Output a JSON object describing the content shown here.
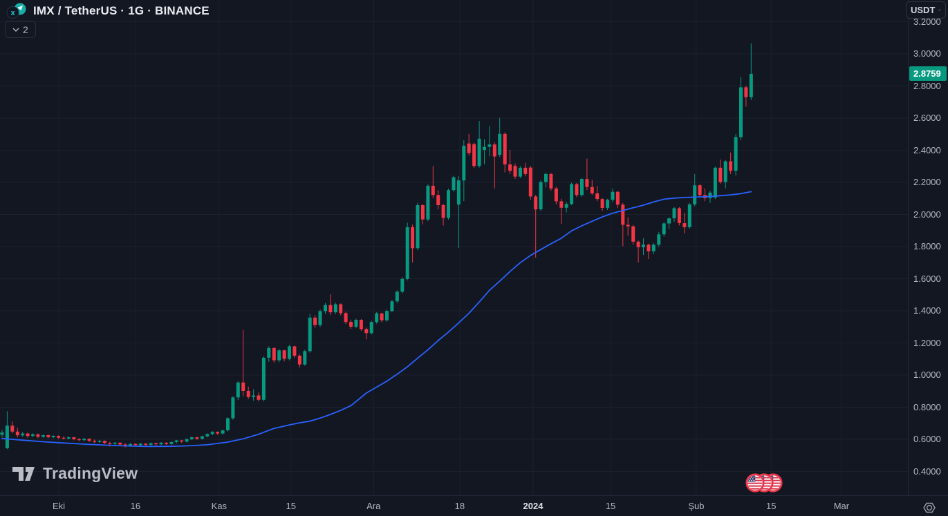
{
  "header": {
    "symbol_title": "IMX / TetherUS · 1G · BINANCE",
    "symbol": "IMX",
    "quote": "TetherUS",
    "interval": "1G",
    "exchange": "BINANCE",
    "indicators_collapsed_count": "2",
    "currency_button_label": "USDT"
  },
  "watermark": {
    "label": "TradingView"
  },
  "event_markers": {
    "type": "us-flag-economic-events",
    "count": 3
  },
  "chart_data": {
    "type": "candlestick",
    "title": "IMX / TetherUS",
    "interval": "1G",
    "exchange": "BINANCE",
    "quote_currency": "USDT",
    "last_price": 2.8759,
    "last_price_display": "2.8759",
    "overlay": "moving-average-line",
    "colors": {
      "up": "#089981",
      "down": "#F23645",
      "ma_line": "#2962FF",
      "badge_bg": "#089981",
      "grid": "#1c212e",
      "axis_text": "#b4b8c1",
      "background": "#131722"
    },
    "y_axis": {
      "side": "right",
      "min": 0.35,
      "max": 3.25,
      "gridline_step": 0.2,
      "price_lines": [
        3.2,
        3.0,
        2.8,
        2.6,
        2.4,
        2.2,
        2.0,
        1.8,
        1.6,
        1.4,
        1.2,
        1.0,
        0.8,
        0.6,
        0.4
      ]
    },
    "x_ticks": [
      {
        "label": "Eki",
        "i": 11.05,
        "strong": false
      },
      {
        "label": "16",
        "i": 26.0,
        "strong": false
      },
      {
        "label": "Kas",
        "i": 42.3,
        "strong": false
      },
      {
        "label": "15",
        "i": 56.3,
        "strong": false
      },
      {
        "label": "Ara",
        "i": 72.4,
        "strong": false
      },
      {
        "label": "18",
        "i": 89.2,
        "strong": false
      },
      {
        "label": "2024",
        "i": 103.5,
        "strong": true
      },
      {
        "label": "15",
        "i": 118.6,
        "strong": false
      },
      {
        "label": "Şub",
        "i": 135.3,
        "strong": false
      },
      {
        "label": "15",
        "i": 149.9,
        "strong": false
      },
      {
        "label": "Mar",
        "i": 163.6,
        "strong": false
      }
    ],
    "candles": [
      [
        0.628,
        0.658,
        0.612,
        0.642
      ],
      [
        0.545,
        0.775,
        0.538,
        0.685
      ],
      [
        0.685,
        0.712,
        0.638,
        0.648
      ],
      [
        0.648,
        0.672,
        0.612,
        0.625
      ],
      [
        0.625,
        0.645,
        0.616,
        0.636
      ],
      [
        0.636,
        0.642,
        0.61,
        0.621
      ],
      [
        0.621,
        0.638,
        0.613,
        0.631
      ],
      [
        0.631,
        0.636,
        0.608,
        0.616
      ],
      [
        0.616,
        0.63,
        0.609,
        0.626
      ],
      [
        0.626,
        0.63,
        0.606,
        0.613
      ],
      [
        0.613,
        0.625,
        0.607,
        0.621
      ],
      [
        0.621,
        0.624,
        0.602,
        0.61
      ],
      [
        0.61,
        0.618,
        0.598,
        0.605
      ],
      [
        0.605,
        0.617,
        0.599,
        0.613
      ],
      [
        0.613,
        0.615,
        0.594,
        0.601
      ],
      [
        0.601,
        0.608,
        0.588,
        0.595
      ],
      [
        0.595,
        0.609,
        0.589,
        0.604
      ],
      [
        0.604,
        0.606,
        0.583,
        0.591
      ],
      [
        0.591,
        0.598,
        0.576,
        0.584
      ],
      [
        0.584,
        0.596,
        0.577,
        0.591
      ],
      [
        0.591,
        0.593,
        0.57,
        0.578
      ],
      [
        0.578,
        0.584,
        0.555,
        0.572
      ],
      [
        0.572,
        0.583,
        0.564,
        0.579
      ],
      [
        0.579,
        0.581,
        0.561,
        0.568
      ],
      [
        0.568,
        0.574,
        0.55,
        0.562
      ],
      [
        0.562,
        0.575,
        0.555,
        0.571
      ],
      [
        0.571,
        0.574,
        0.556,
        0.564
      ],
      [
        0.564,
        0.577,
        0.557,
        0.573
      ],
      [
        0.573,
        0.576,
        0.558,
        0.566
      ],
      [
        0.566,
        0.58,
        0.559,
        0.576
      ],
      [
        0.576,
        0.579,
        0.56,
        0.569
      ],
      [
        0.569,
        0.583,
        0.562,
        0.579
      ],
      [
        0.579,
        0.582,
        0.563,
        0.571
      ],
      [
        0.571,
        0.587,
        0.565,
        0.583
      ],
      [
        0.583,
        0.597,
        0.576,
        0.593
      ],
      [
        0.593,
        0.596,
        0.578,
        0.586
      ],
      [
        0.586,
        0.605,
        0.58,
        0.601
      ],
      [
        0.601,
        0.617,
        0.595,
        0.613
      ],
      [
        0.613,
        0.616,
        0.596,
        0.604
      ],
      [
        0.604,
        0.623,
        0.598,
        0.619
      ],
      [
        0.619,
        0.637,
        0.612,
        0.633
      ],
      [
        0.633,
        0.651,
        0.626,
        0.646
      ],
      [
        0.646,
        0.649,
        0.628,
        0.636
      ],
      [
        0.636,
        0.66,
        0.63,
        0.656
      ],
      [
        0.656,
        0.737,
        0.648,
        0.731
      ],
      [
        0.731,
        0.868,
        0.722,
        0.861
      ],
      [
        0.861,
        0.963,
        0.845,
        0.954
      ],
      [
        0.954,
        1.28,
        0.868,
        0.901
      ],
      [
        0.901,
        0.928,
        0.852,
        0.863
      ],
      [
        0.863,
        0.912,
        0.84,
        0.873
      ],
      [
        0.873,
        0.891,
        0.836,
        0.846
      ],
      [
        0.846,
        1.118,
        0.838,
        1.108
      ],
      [
        1.108,
        1.18,
        1.082,
        1.168
      ],
      [
        1.168,
        1.175,
        1.078,
        1.092
      ],
      [
        1.092,
        1.162,
        1.08,
        1.154
      ],
      [
        1.154,
        1.158,
        1.085,
        1.101
      ],
      [
        1.101,
        1.188,
        1.092,
        1.179
      ],
      [
        1.179,
        1.183,
        1.108,
        1.121
      ],
      [
        1.121,
        1.13,
        1.048,
        1.066
      ],
      [
        1.066,
        1.158,
        1.058,
        1.149
      ],
      [
        1.149,
        1.382,
        1.139,
        1.358
      ],
      [
        1.358,
        1.372,
        1.295,
        1.312
      ],
      [
        1.312,
        1.408,
        1.3,
        1.398
      ],
      [
        1.398,
        1.448,
        1.382,
        1.436
      ],
      [
        1.436,
        1.503,
        1.374,
        1.391
      ],
      [
        1.391,
        1.452,
        1.38,
        1.441
      ],
      [
        1.441,
        1.446,
        1.372,
        1.386
      ],
      [
        1.386,
        1.394,
        1.318,
        1.331
      ],
      [
        1.331,
        1.345,
        1.288,
        1.301
      ],
      [
        1.301,
        1.352,
        1.292,
        1.344
      ],
      [
        1.344,
        1.349,
        1.275,
        1.287
      ],
      [
        1.287,
        1.296,
        1.222,
        1.261
      ],
      [
        1.261,
        1.338,
        1.252,
        1.33
      ],
      [
        1.33,
        1.392,
        1.32,
        1.384
      ],
      [
        1.384,
        1.388,
        1.328,
        1.341
      ],
      [
        1.341,
        1.408,
        1.332,
        1.399
      ],
      [
        1.399,
        1.468,
        1.39,
        1.459
      ],
      [
        1.459,
        1.528,
        1.448,
        1.519
      ],
      [
        1.519,
        1.608,
        1.508,
        1.599
      ],
      [
        1.599,
        1.949,
        1.59,
        1.921
      ],
      [
        1.921,
        1.938,
        1.701,
        1.79
      ],
      [
        1.79,
        2.072,
        1.778,
        2.058
      ],
      [
        2.058,
        2.066,
        1.938,
        1.969
      ],
      [
        1.969,
        2.188,
        1.958,
        2.179
      ],
      [
        2.179,
        2.302,
        2.102,
        2.121
      ],
      [
        2.121,
        2.152,
        2.032,
        2.058
      ],
      [
        2.058,
        2.066,
        1.931,
        1.979
      ],
      [
        1.979,
        2.161,
        1.968,
        2.152
      ],
      [
        2.152,
        2.241,
        2.142,
        2.232
      ],
      [
        2.062,
        2.238,
        1.792,
        2.212
      ],
      [
        2.212,
        2.462,
        2.082,
        2.428
      ],
      [
        2.442,
        2.502,
        2.368,
        2.382
      ],
      [
        2.438,
        2.448,
        2.288,
        2.302
      ],
      [
        2.302,
        2.582,
        2.292,
        2.472
      ],
      [
        2.402,
        2.468,
        2.312,
        2.421
      ],
      [
        2.421,
        2.552,
        2.362,
        2.436
      ],
      [
        2.436,
        2.448,
        2.162,
        2.361
      ],
      [
        2.372,
        2.602,
        2.358,
        2.502
      ],
      [
        2.502,
        2.512,
        2.262,
        2.312
      ],
      [
        2.312,
        2.402,
        2.252,
        2.272
      ],
      [
        2.302,
        2.318,
        2.222,
        2.236
      ],
      [
        2.236,
        2.301,
        2.226,
        2.291
      ],
      [
        2.291,
        2.322,
        2.238,
        2.252
      ],
      [
        2.292,
        2.302,
        2.092,
        2.112
      ],
      [
        2.112,
        2.122,
        1.731,
        2.032
      ],
      [
        2.032,
        2.212,
        2.022,
        2.202
      ],
      [
        2.202,
        2.262,
        2.168,
        2.252
      ],
      [
        2.252,
        2.258,
        2.148,
        2.162
      ],
      [
        2.162,
        2.172,
        2.062,
        2.082
      ],
      [
        2.082,
        2.098,
        1.941,
        2.042
      ],
      [
        2.042,
        2.078,
        2.012,
        2.066
      ],
      [
        2.066,
        2.198,
        2.058,
        2.189
      ],
      [
        2.189,
        2.196,
        2.108,
        2.121
      ],
      [
        2.121,
        2.228,
        2.112,
        2.221
      ],
      [
        2.221,
        2.348,
        2.152,
        2.171
      ],
      [
        2.171,
        2.216,
        2.122,
        2.131
      ],
      [
        2.131,
        2.178,
        2.082,
        2.096
      ],
      [
        2.096,
        2.102,
        2.022,
        2.041
      ],
      [
        2.041,
        2.098,
        2.028,
        2.091
      ],
      [
        2.091,
        2.162,
        2.078,
        2.141
      ],
      [
        2.141,
        2.148,
        2.042,
        2.061
      ],
      [
        2.061,
        2.072,
        1.802,
        1.936
      ],
      [
        1.936,
        1.982,
        1.868,
        1.926
      ],
      [
        1.926,
        1.934,
        1.812,
        1.831
      ],
      [
        1.831,
        1.838,
        1.701,
        1.796
      ],
      [
        1.796,
        1.852,
        1.748,
        1.812
      ],
      [
        1.812,
        1.818,
        1.722,
        1.771
      ],
      [
        1.771,
        1.822,
        1.752,
        1.812
      ],
      [
        1.812,
        1.892,
        1.798,
        1.876
      ],
      [
        1.876,
        1.952,
        1.862,
        1.944
      ],
      [
        1.944,
        1.982,
        1.912,
        1.976
      ],
      [
        1.976,
        2.048,
        1.955,
        2.039
      ],
      [
        2.039,
        2.046,
        1.932,
        1.946
      ],
      [
        1.946,
        2.008,
        1.882,
        1.921
      ],
      [
        1.921,
        2.072,
        1.912,
        2.063
      ],
      [
        2.063,
        2.252,
        2.052,
        2.182
      ],
      [
        2.182,
        2.188,
        2.108,
        2.121
      ],
      [
        2.121,
        2.162,
        2.082,
        2.102
      ],
      [
        2.102,
        2.148,
        2.072,
        2.136
      ],
      [
        2.106,
        2.298,
        2.096,
        2.291
      ],
      [
        2.291,
        2.342,
        2.192,
        2.202
      ],
      [
        2.202,
        2.338,
        2.162,
        2.331
      ],
      [
        2.331,
        2.386,
        2.252,
        2.272
      ],
      [
        2.272,
        2.502,
        2.242,
        2.482
      ],
      [
        2.482,
        2.856,
        2.462,
        2.792
      ],
      [
        2.792,
        2.802,
        2.672,
        2.731
      ],
      [
        2.731,
        3.065,
        2.712,
        2.8759
      ]
    ],
    "ma_line": {
      "name": "moving-average",
      "points": [
        [
          0,
          0.605
        ],
        [
          4,
          0.595
        ],
        [
          8,
          0.585
        ],
        [
          12,
          0.577
        ],
        [
          16,
          0.57
        ],
        [
          20,
          0.564
        ],
        [
          24,
          0.559
        ],
        [
          28,
          0.5555
        ],
        [
          32,
          0.556
        ],
        [
          36,
          0.559
        ],
        [
          40,
          0.566
        ],
        [
          44,
          0.583
        ],
        [
          47,
          0.603
        ],
        [
          50,
          0.632
        ],
        [
          53,
          0.668
        ],
        [
          56,
          0.69
        ],
        [
          58,
          0.703
        ],
        [
          60,
          0.713
        ],
        [
          62,
          0.732
        ],
        [
          64,
          0.755
        ],
        [
          66,
          0.78
        ],
        [
          68,
          0.81
        ],
        [
          71,
          0.888
        ],
        [
          73,
          0.925
        ],
        [
          75,
          0.962
        ],
        [
          77,
          1.005
        ],
        [
          79,
          1.052
        ],
        [
          81,
          1.105
        ],
        [
          83,
          1.158
        ],
        [
          85,
          1.215
        ],
        [
          87,
          1.268
        ],
        [
          89,
          1.325
        ],
        [
          91,
          1.385
        ],
        [
          93,
          1.455
        ],
        [
          95,
          1.528
        ],
        [
          97,
          1.585
        ],
        [
          99,
          1.645
        ],
        [
          101,
          1.7
        ],
        [
          103,
          1.745
        ],
        [
          105,
          1.782
        ],
        [
          107,
          1.818
        ],
        [
          109,
          1.852
        ],
        [
          111,
          1.898
        ],
        [
          113,
          1.93
        ],
        [
          115,
          1.958
        ],
        [
          117,
          1.985
        ],
        [
          119,
          2.008
        ],
        [
          121,
          2.025
        ],
        [
          123,
          2.042
        ],
        [
          125,
          2.058
        ],
        [
          127,
          2.078
        ],
        [
          129,
          2.095
        ],
        [
          131,
          2.102
        ],
        [
          133,
          2.106
        ],
        [
          135,
          2.108
        ],
        [
          138,
          2.112
        ],
        [
          140,
          2.117
        ],
        [
          142,
          2.122
        ],
        [
          144,
          2.13
        ],
        [
          146,
          2.142
        ]
      ]
    }
  }
}
